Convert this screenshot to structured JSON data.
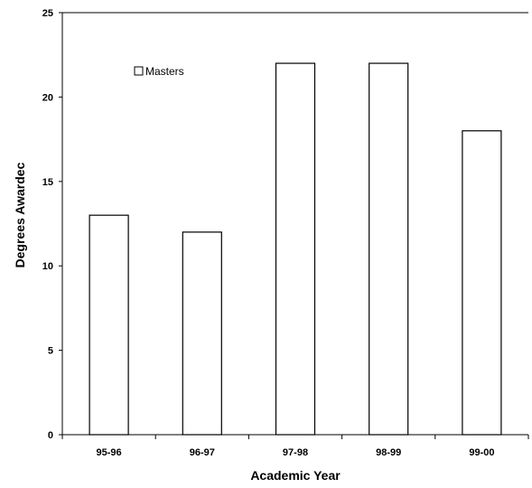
{
  "chart_data": {
    "type": "bar",
    "categories": [
      "95-96",
      "96-97",
      "97-98",
      "98-99",
      "99-00"
    ],
    "series": [
      {
        "name": "Masters",
        "values": [
          13,
          12,
          22,
          22,
          18
        ],
        "color": "#ffffff"
      }
    ],
    "xlabel": "Academic Year",
    "ylabel": "Degrees Awardec",
    "ylim": [
      0,
      25
    ],
    "yticks": [
      0,
      5,
      10,
      15,
      20,
      25
    ],
    "grid": false,
    "legend_position": "top-left"
  }
}
